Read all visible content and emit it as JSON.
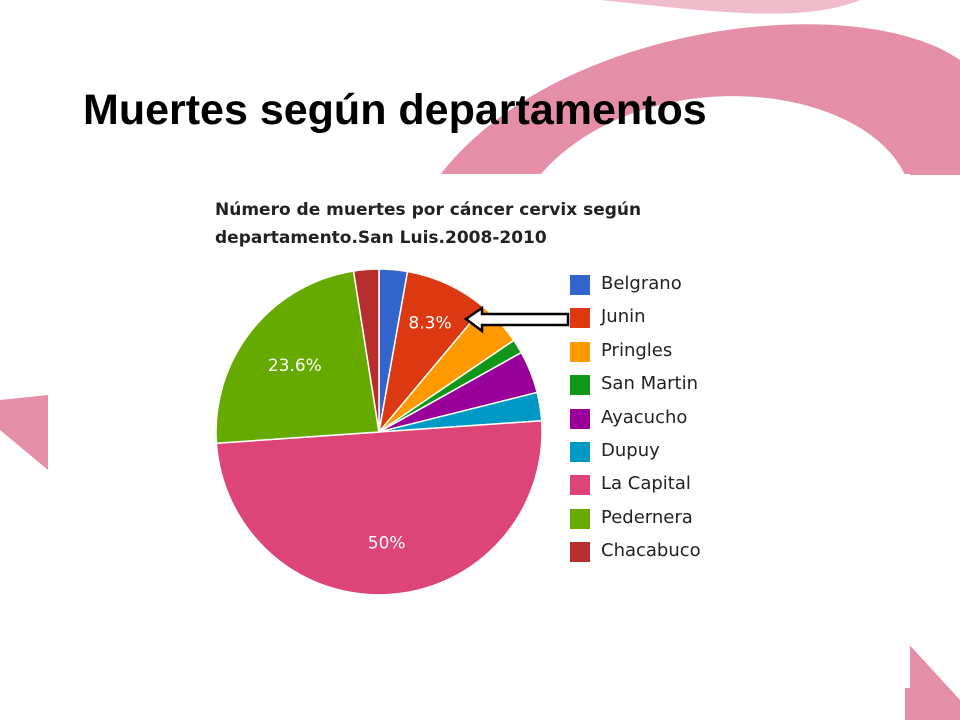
{
  "slide": {
    "title": "Muertes según departamentos"
  },
  "colors": {
    "ribbon": "#e07a98"
  },
  "chart_data": {
    "type": "pie",
    "title_lines": [
      "Número de muertes por cáncer cervix según",
      "departamento.San Luis.2008-2010"
    ],
    "legend_position": "right",
    "slices": [
      {
        "name": "Belgrano",
        "value": 2.8,
        "color": "#3366cc",
        "label": ""
      },
      {
        "name": "Junin",
        "value": 8.3,
        "color": "#dc3912",
        "label": "8.3%"
      },
      {
        "name": "Pringles",
        "value": 4.4,
        "color": "#ff9900",
        "label": ""
      },
      {
        "name": "San Martin",
        "value": 1.4,
        "color": "#109618",
        "label": ""
      },
      {
        "name": "Ayacucho",
        "value": 4.2,
        "color": "#990099",
        "label": ""
      },
      {
        "name": "Dupuy",
        "value": 2.8,
        "color": "#0099c6",
        "label": ""
      },
      {
        "name": "La Capital",
        "value": 50,
        "color": "#dd4477",
        "label": "50%"
      },
      {
        "name": "Pedernera",
        "value": 23.6,
        "color": "#66aa00",
        "label": "23.6%"
      },
      {
        "name": "Chacabuco",
        "value": 2.5,
        "color": "#b82e2e",
        "label": ""
      }
    ],
    "annotation": {
      "points_to": "Junin"
    }
  }
}
